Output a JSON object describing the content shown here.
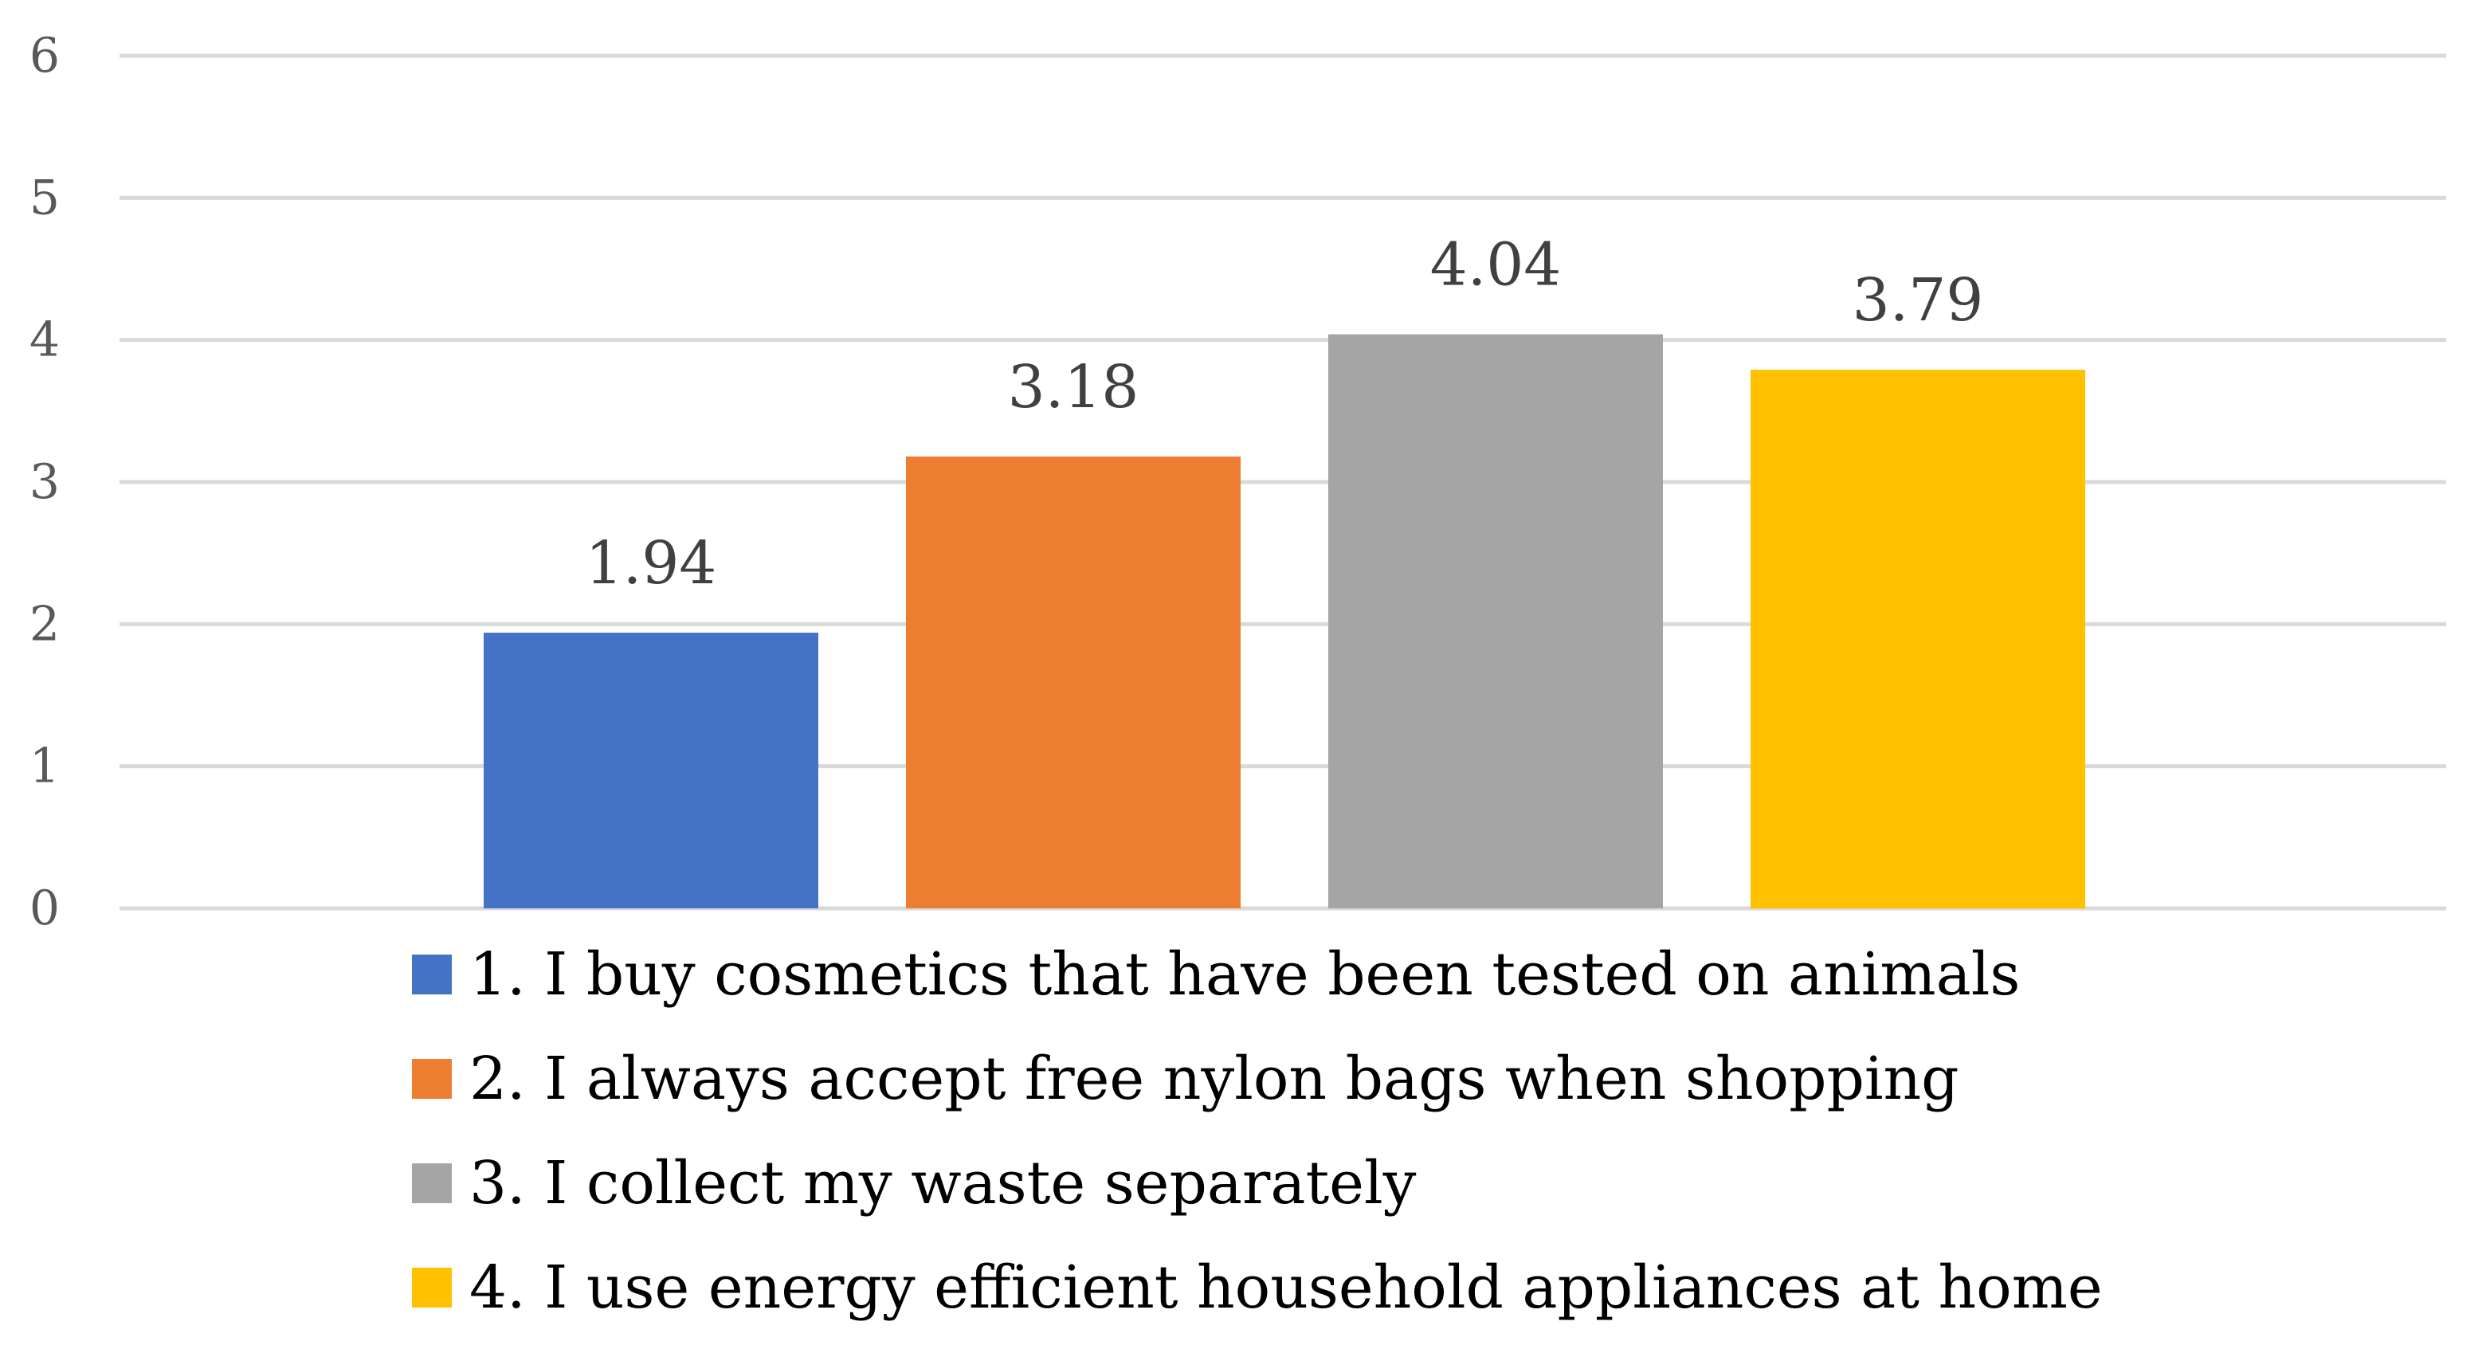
{
  "chart_data": {
    "type": "bar",
    "title": "",
    "xlabel": "",
    "ylabel": "",
    "ylim": [
      0,
      6
    ],
    "yticks": [
      0,
      1,
      2,
      3,
      4,
      5,
      6
    ],
    "grid": true,
    "legend_position": "bottom",
    "data_labels": true,
    "series": [
      {
        "name": "1. I buy cosmetics that have been tested on animals",
        "value": 1.94,
        "label": "1.94",
        "color": "#4472c4"
      },
      {
        "name": "2. I always accept free nylon bags when shopping",
        "value": 3.18,
        "label": "3.18",
        "color": "#ed7d31"
      },
      {
        "name": "3. I collect my waste separately",
        "value": 4.04,
        "label": "4.04",
        "color": "#a5a5a5"
      },
      {
        "name": "4. I use energy efficient household appliances at home",
        "value": 3.79,
        "label": "3.79",
        "color": "#ffc000"
      }
    ]
  }
}
